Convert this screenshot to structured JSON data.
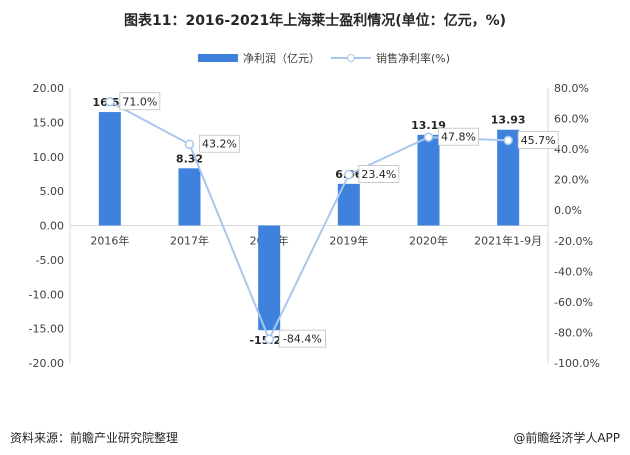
{
  "title": "图表11：2016-2021年上海莱士盈利情况(单位：亿元，%)",
  "legend": {
    "bar": "净利润（亿元）",
    "line": "销售净利率(%)"
  },
  "colors": {
    "bar": "#3e82de",
    "line": "#a9c7ec",
    "axis": "#d9d9d9",
    "text": "#404040"
  },
  "footer": {
    "source": "资料来源：前瞻产业研究院整理",
    "brand": "@前瞻经济学人APP"
  },
  "chart_data": {
    "type": "bar",
    "categories": [
      "2016年",
      "2017年",
      "2018年",
      "2019年",
      "2020年",
      "2021年1-9月"
    ],
    "series": [
      {
        "name": "净利润（亿元）",
        "type": "bar",
        "axis": "left",
        "values": [
          16.5,
          8.32,
          -15.23,
          6.06,
          13.19,
          13.93
        ],
        "labels": [
          "16.50",
          "8.32",
          "-15.23",
          "6.06",
          "13.19",
          "13.93"
        ]
      },
      {
        "name": "销售净利率(%)",
        "type": "line",
        "axis": "right",
        "values": [
          71.0,
          43.2,
          -84.4,
          23.4,
          47.8,
          45.7
        ],
        "labels": [
          "71.0%",
          "43.2%",
          "-84.4%",
          "23.4%",
          "47.8%",
          "45.7%"
        ]
      }
    ],
    "left_axis": {
      "ylim": [
        -20,
        20
      ],
      "ticks": [
        "20.00",
        "15.00",
        "10.00",
        "5.00",
        "0.00",
        "-5.00",
        "-10.00",
        "-15.00",
        "-20.00"
      ]
    },
    "right_axis": {
      "ylim": [
        -100,
        80
      ],
      "ticks": [
        "80.0%",
        "60.0%",
        "40.0%",
        "20.0%",
        "0.0%",
        "-20.0%",
        "-40.0%",
        "-60.0%",
        "-80.0%",
        "-100.0%"
      ]
    },
    "legend_position": "top-center",
    "grid": false
  }
}
